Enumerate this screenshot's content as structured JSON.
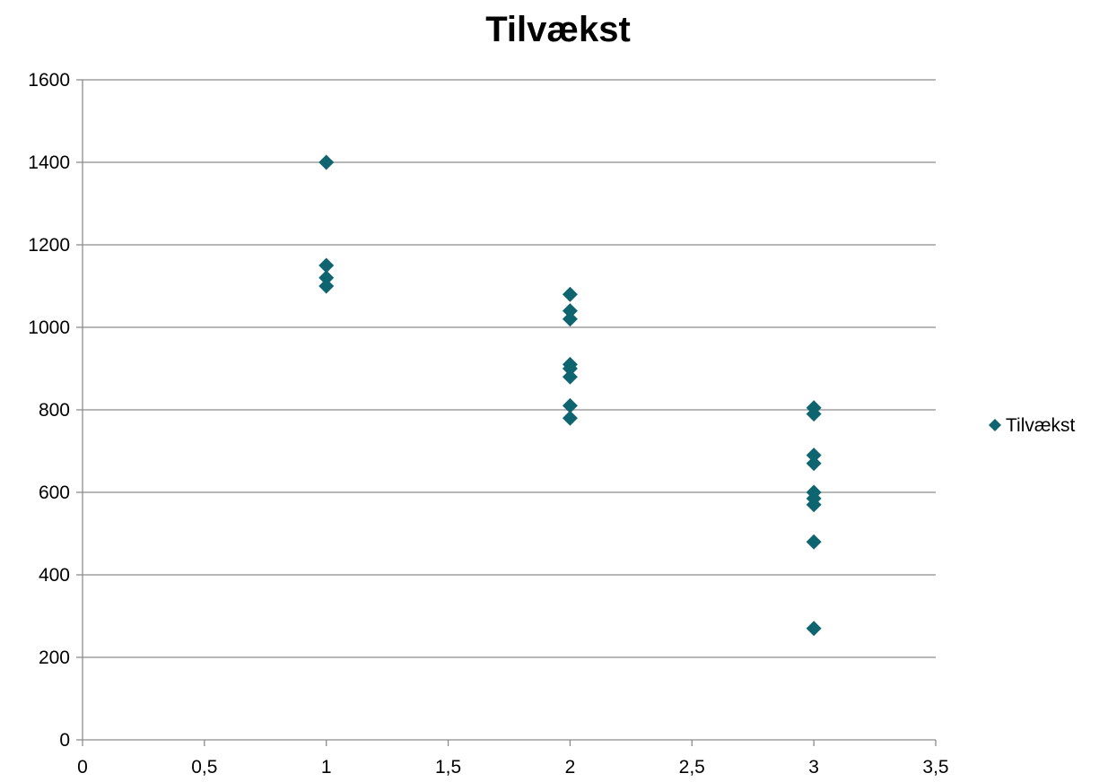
{
  "chart_data": {
    "type": "scatter",
    "title": "Tilvækst",
    "xlabel": "",
    "ylabel": "",
    "xlim": [
      0,
      3.5
    ],
    "ylim": [
      0,
      1600
    ],
    "x_ticks": [
      "0",
      "0,5",
      "1",
      "1,5",
      "2",
      "2,5",
      "3",
      "3,5"
    ],
    "y_ticks": [
      "0",
      "200",
      "400",
      "600",
      "800",
      "1000",
      "1200",
      "1400",
      "1600"
    ],
    "grid": "horizontal",
    "legend_position": "right",
    "series": [
      {
        "name": "Tilvækst",
        "color": "#0E6570",
        "marker": "diamond",
        "points": [
          [
            1,
            1400
          ],
          [
            1,
            1150
          ],
          [
            1,
            1120
          ],
          [
            1,
            1100
          ],
          [
            2,
            1080
          ],
          [
            2,
            1040
          ],
          [
            2,
            1020
          ],
          [
            2,
            910
          ],
          [
            2,
            900
          ],
          [
            2,
            880
          ],
          [
            2,
            810
          ],
          [
            2,
            780
          ],
          [
            3,
            805
          ],
          [
            3,
            790
          ],
          [
            3,
            690
          ],
          [
            3,
            670
          ],
          [
            3,
            600
          ],
          [
            3,
            585
          ],
          [
            3,
            570
          ],
          [
            3,
            480
          ],
          [
            3,
            270
          ]
        ]
      }
    ]
  }
}
